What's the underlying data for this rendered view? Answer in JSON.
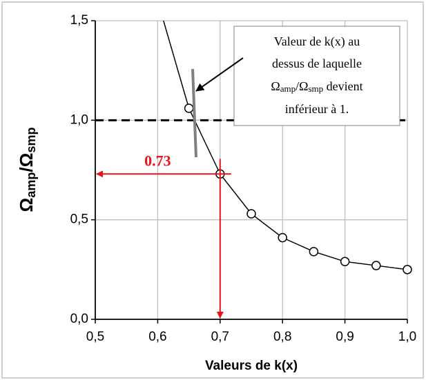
{
  "chart_data": {
    "type": "line",
    "x_label": "Valeurs de k(x)",
    "y_label": [
      "Ω",
      "amp",
      "/Ω",
      "smp"
    ],
    "x": [
      0.6,
      0.65,
      0.7,
      0.75,
      0.8,
      0.85,
      0.9,
      0.95,
      1.0
    ],
    "series": [
      {
        "color": "#000000",
        "values": [
          1.6,
          1.06,
          0.73,
          0.53,
          0.41,
          0.34,
          0.29,
          0.27,
          0.25
        ]
      }
    ],
    "xlim": [
      0.5,
      1.0
    ],
    "xticks": [
      {
        "value": 0.5,
        "label": "0,5"
      },
      {
        "value": 0.6,
        "label": "0,6"
      },
      {
        "value": 0.7,
        "label": "0,7"
      },
      {
        "value": 0.8,
        "label": "0,8"
      },
      {
        "value": 0.9,
        "label": "0,9"
      },
      {
        "value": 1.0,
        "label": "1,0"
      }
    ],
    "ylim": [
      0,
      1.5
    ],
    "yticks": [
      {
        "value": 0,
        "label": "0,0"
      },
      {
        "value": 0.5,
        "label": "0,5"
      },
      {
        "value": 1.0,
        "label": "1,0"
      },
      {
        "value": 1.5,
        "label": "1,5"
      }
    ],
    "grid": true,
    "threshold": 1.0,
    "marker_x": 0.7,
    "marker_value": {
      "value": 0.73,
      "label": "0.73"
    },
    "annotation": [
      "Valeur de k(x) au",
      "dessus de laquelle",
      [
        "Ω",
        "amp",
        "/Ω",
        "smp",
        " devient"
      ],
      "inférieur à 1."
    ]
  }
}
